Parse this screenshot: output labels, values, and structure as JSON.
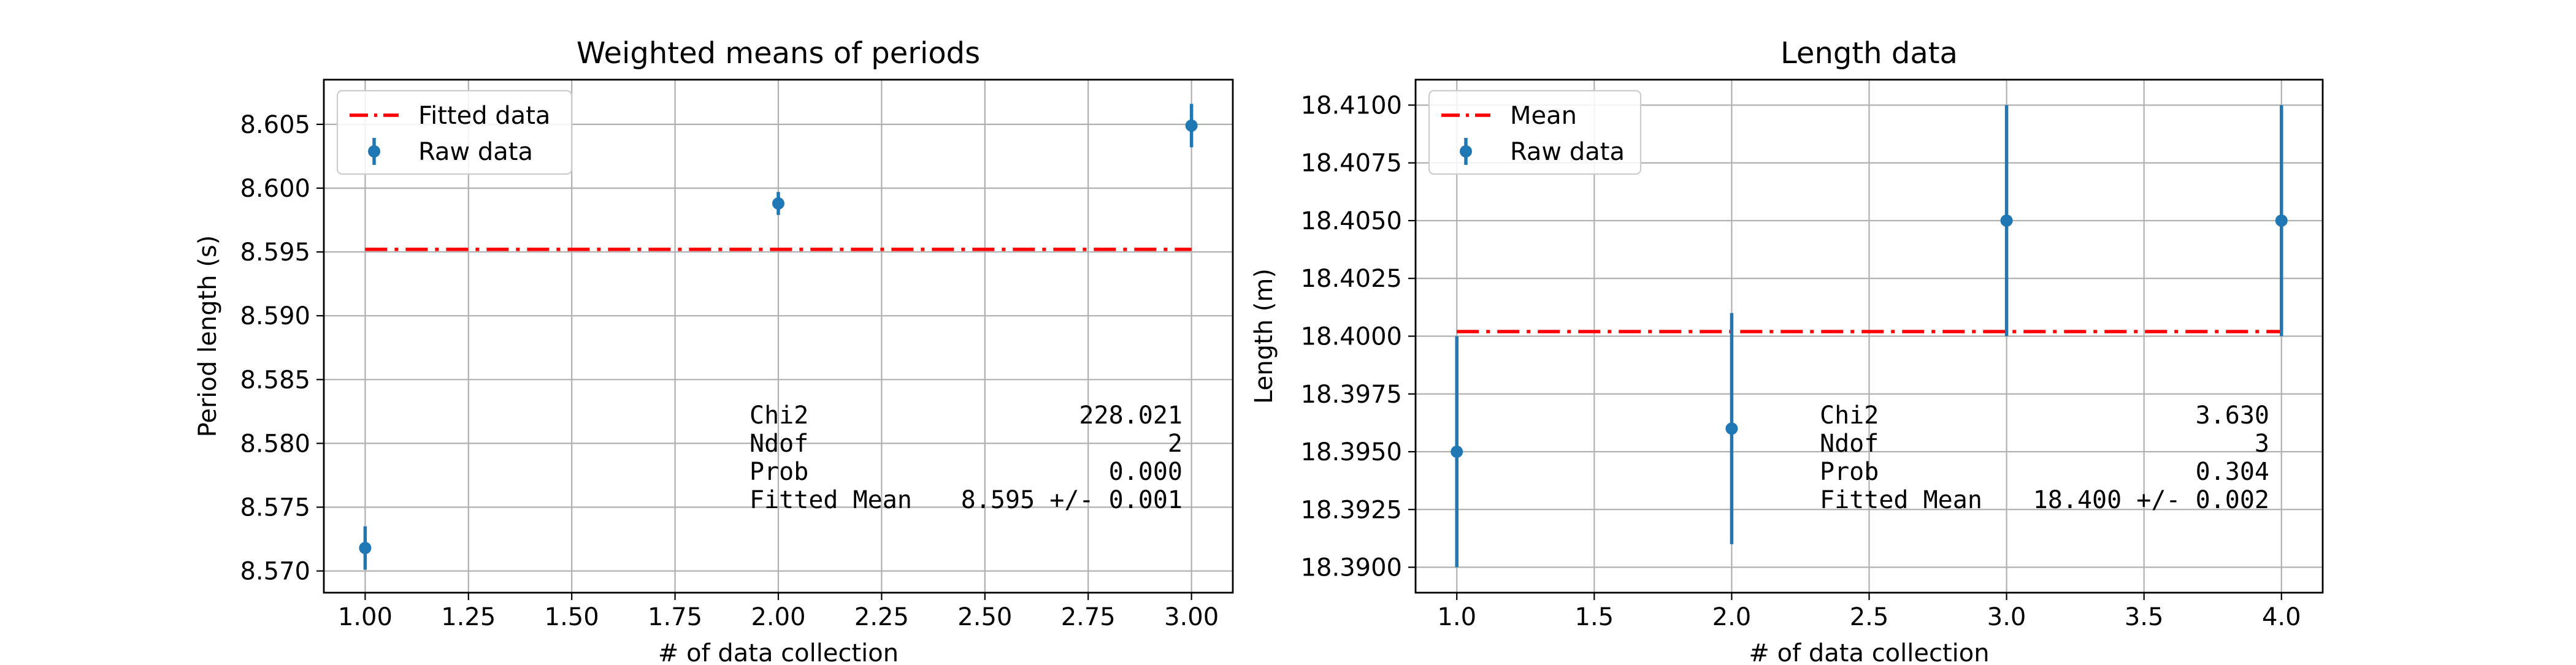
{
  "colors": {
    "raw": "#1f77b4",
    "fit": "#ff0000",
    "grid": "#b0b0b0",
    "axis": "#000000"
  },
  "chart_data": [
    {
      "type": "scatter",
      "title": "Weighted means of periods",
      "xlabel": "# of data collection",
      "ylabel": "Period length (s)",
      "xlim": [
        0.9,
        3.1
      ],
      "ylim": [
        8.5683,
        8.6085
      ],
      "xticks": [
        1.0,
        1.25,
        1.5,
        1.75,
        2.0,
        2.25,
        2.5,
        2.75,
        3.0
      ],
      "xtick_labels": [
        "1.00",
        "1.25",
        "1.50",
        "1.75",
        "2.00",
        "2.25",
        "2.50",
        "2.75",
        "3.00"
      ],
      "yticks": [
        8.57,
        8.575,
        8.58,
        8.585,
        8.59,
        8.595,
        8.6,
        8.605
      ],
      "ytick_labels": [
        "8.570",
        "8.575",
        "8.580",
        "8.585",
        "8.590",
        "8.595",
        "8.600",
        "8.605"
      ],
      "grid": true,
      "legend_position": "upper left",
      "series": [
        {
          "name": "Fitted data",
          "kind": "line",
          "x": [
            1.0,
            3.0
          ],
          "y": [
            8.5952,
            8.5952
          ]
        },
        {
          "name": "Raw data",
          "kind": "errorbar",
          "x": [
            1.0,
            2.0,
            3.0
          ],
          "y": [
            8.5718,
            8.5988,
            8.6049
          ],
          "yerr": [
            0.0017,
            0.0009,
            0.0017
          ]
        }
      ],
      "stats": {
        "rows": [
          {
            "label": "Chi2",
            "value": "228.021"
          },
          {
            "label": "Ndof",
            "value": "2"
          },
          {
            "label": "Prob",
            "value": "0.000"
          },
          {
            "label": "Fitted Mean",
            "value": "8.595 +/- 0.001"
          }
        ]
      }
    },
    {
      "type": "scatter",
      "title": "Length data",
      "xlabel": "# of data collection",
      "ylabel": "Length (m)",
      "xlim": [
        0.85,
        4.15
      ],
      "ylim": [
        18.3889,
        18.4111
      ],
      "xticks": [
        1.0,
        1.5,
        2.0,
        2.5,
        3.0,
        3.5,
        4.0
      ],
      "xtick_labels": [
        "1.0",
        "1.5",
        "2.0",
        "2.5",
        "3.0",
        "3.5",
        "4.0"
      ],
      "yticks": [
        18.39,
        18.3925,
        18.395,
        18.3975,
        18.4,
        18.4025,
        18.405,
        18.4075,
        18.41
      ],
      "ytick_labels": [
        "18.3900",
        "18.3925",
        "18.3950",
        "18.3975",
        "18.4000",
        "18.4025",
        "18.4050",
        "18.4075",
        "18.4100"
      ],
      "grid": true,
      "legend_position": "upper left",
      "series": [
        {
          "name": "Mean",
          "kind": "line",
          "x": [
            1.0,
            4.0
          ],
          "y": [
            18.4002,
            18.4002
          ]
        },
        {
          "name": "Raw data",
          "kind": "errorbar",
          "x": [
            1.0,
            2.0,
            3.0,
            4.0
          ],
          "y": [
            18.395,
            18.396,
            18.405,
            18.405
          ],
          "yerr": [
            0.005,
            0.005,
            0.005,
            0.005
          ]
        }
      ],
      "stats": {
        "rows": [
          {
            "label": "Chi2",
            "value": "3.630"
          },
          {
            "label": "Ndof",
            "value": "3"
          },
          {
            "label": "Prob",
            "value": "0.304"
          },
          {
            "label": "Fitted Mean",
            "value": "18.400 +/- 0.002"
          }
        ]
      }
    }
  ]
}
